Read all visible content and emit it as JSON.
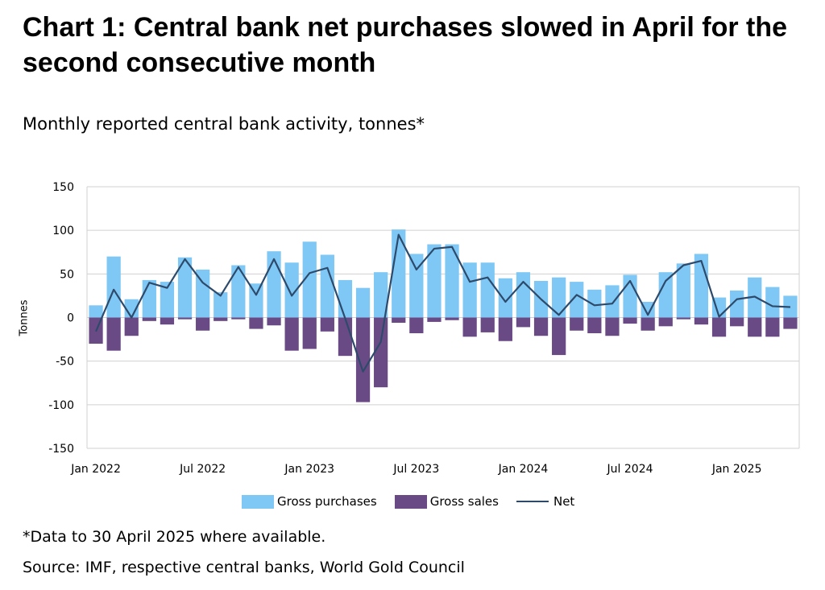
{
  "title": "Chart 1: Central bank net purchases slowed in April for the second consecutive month",
  "subtitle": "Monthly reported central bank activity, tonnes*",
  "footnote": "*Data to 30 April 2025 where available.",
  "source": "Source: IMF, respective central banks, World Gold Council",
  "colors": {
    "purchases": "#7fc8f5",
    "sales": "#6a4a85",
    "net": "#2e4a6b",
    "grid": "#d0d0d0"
  },
  "chart_data": {
    "type": "bar",
    "ylabel": "Tonnes",
    "ylim": [
      -150,
      150
    ],
    "yticks": [
      "150",
      "100",
      "50",
      "0",
      "-50",
      "-100",
      "-150"
    ],
    "xtick_labels": [
      "Jan 2022",
      "Jul 2022",
      "Jan 2023",
      "Jul 2023",
      "Jan 2024",
      "Jul 2024",
      "Jan 2025"
    ],
    "legend": [
      "Gross purchases",
      "Gross sales",
      "Net"
    ],
    "legend_position": "bottom",
    "categories": [
      "2022-01",
      "2022-02",
      "2022-03",
      "2022-04",
      "2022-05",
      "2022-06",
      "2022-07",
      "2022-08",
      "2022-09",
      "2022-10",
      "2022-11",
      "2022-12",
      "2023-01",
      "2023-02",
      "2023-03",
      "2023-04",
      "2023-05",
      "2023-06",
      "2023-07",
      "2023-08",
      "2023-09",
      "2023-10",
      "2023-11",
      "2023-12",
      "2024-01",
      "2024-02",
      "2024-03",
      "2024-04",
      "2024-05",
      "2024-06",
      "2024-07",
      "2024-08",
      "2024-09",
      "2024-10",
      "2024-11",
      "2024-12",
      "2025-01",
      "2025-02",
      "2025-03",
      "2025-04"
    ],
    "series": [
      {
        "name": "Gross purchases",
        "values": [
          14,
          70,
          21,
          43,
          41,
          69,
          55,
          29,
          60,
          39,
          76,
          63,
          87,
          72,
          43,
          34,
          52,
          101,
          73,
          84,
          84,
          63,
          63,
          45,
          52,
          42,
          46,
          41,
          32,
          37,
          49,
          18,
          52,
          62,
          73,
          23,
          31,
          46,
          35,
          25
        ]
      },
      {
        "name": "Gross sales",
        "values": [
          -30,
          -38,
          -21,
          -4,
          -8,
          -2,
          -15,
          -4,
          -2,
          -13,
          -9,
          -38,
          -36,
          -16,
          -44,
          -97,
          -80,
          -6,
          -18,
          -5,
          -3,
          -22,
          -17,
          -27,
          -11,
          -21,
          -43,
          -15,
          -18,
          -21,
          -7,
          -15,
          -10,
          -2,
          -8,
          -22,
          -10,
          -22,
          -22,
          -13
        ]
      },
      {
        "name": "Net",
        "values": [
          -16,
          32,
          0,
          40,
          34,
          67,
          40,
          25,
          58,
          26,
          67,
          25,
          51,
          57,
          -1,
          -62,
          -28,
          95,
          55,
          79,
          81,
          41,
          46,
          18,
          41,
          21,
          3,
          26,
          14,
          16,
          42,
          3,
          42,
          60,
          65,
          1,
          21,
          24,
          13,
          12
        ]
      }
    ]
  }
}
